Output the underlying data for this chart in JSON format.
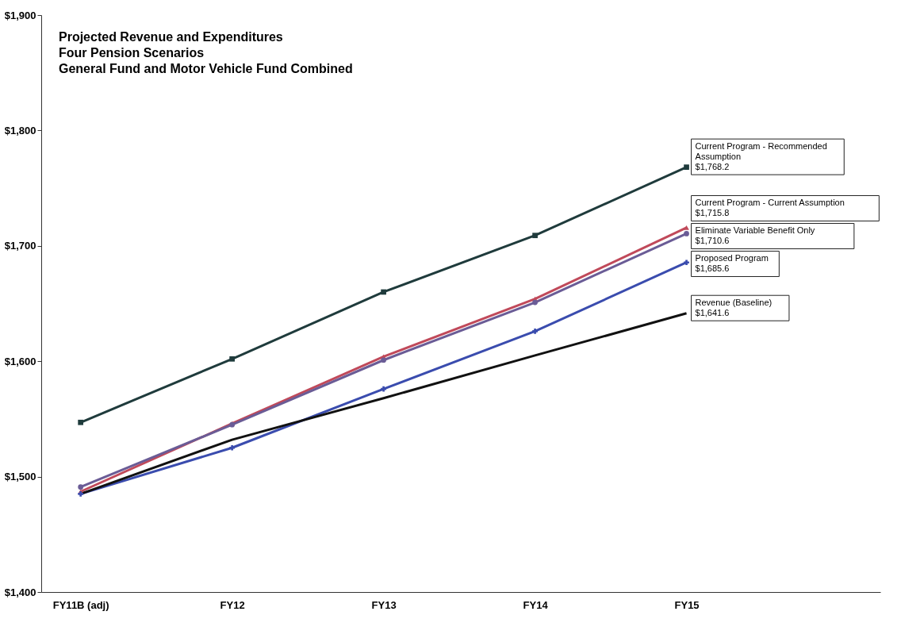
{
  "chart_data": {
    "type": "line",
    "title": "Projected Revenue and Expenditures\nFour Pension Scenarios\nGeneral Fund and Motor Vehicle Fund Combined",
    "categories": [
      "FY11B (adj)",
      "FY12",
      "FY13",
      "FY14",
      "FY15"
    ],
    "series": [
      {
        "name": "Current Program - Recommended Assumption",
        "color": "#1f3b3c",
        "marker": "square",
        "values": [
          1547,
          1602,
          1660,
          1709,
          1768.2
        ],
        "value_labels": [
          null,
          null,
          null,
          null,
          "$1,768.2"
        ]
      },
      {
        "name": "Current Program - Current Assumption",
        "color": "#c0495a",
        "marker": "triangle",
        "values": [
          1487,
          1546,
          1604,
          1654,
          1715.8
        ],
        "value_labels": [
          null,
          null,
          null,
          null,
          "$1,715.8"
        ]
      },
      {
        "name": "Eliminate Variable Benefit Only",
        "color": "#6a5c96",
        "marker": "circle",
        "values": [
          1491,
          1545,
          1601,
          1651,
          1710.6
        ],
        "value_labels": [
          null,
          null,
          null,
          null,
          "$1,710.6"
        ]
      },
      {
        "name": "Proposed Program",
        "color": "#3a4cae",
        "marker": "cross",
        "values": [
          1485,
          1525,
          1576,
          1626,
          1685.6
        ],
        "value_labels": [
          null,
          null,
          null,
          null,
          "$1,685.6"
        ]
      },
      {
        "name": "Revenue (Baseline)",
        "color": "#111111",
        "marker": "none",
        "values": [
          1485,
          1532,
          1568,
          1605,
          1641.6
        ],
        "value_labels": [
          null,
          null,
          null,
          null,
          "$1,641.6"
        ]
      }
    ],
    "ylim": [
      1400,
      1900
    ],
    "yticks": [
      {
        "value": 1400,
        "label": "$1,400"
      },
      {
        "value": 1500,
        "label": "$1,500"
      },
      {
        "value": 1600,
        "label": "$1,600"
      },
      {
        "value": 1700,
        "label": "$1,700"
      },
      {
        "value": 1800,
        "label": "$1,800"
      },
      {
        "value": 1900,
        "label": "$1,900"
      }
    ],
    "grid": false,
    "legend": false,
    "line_style": "solid"
  }
}
